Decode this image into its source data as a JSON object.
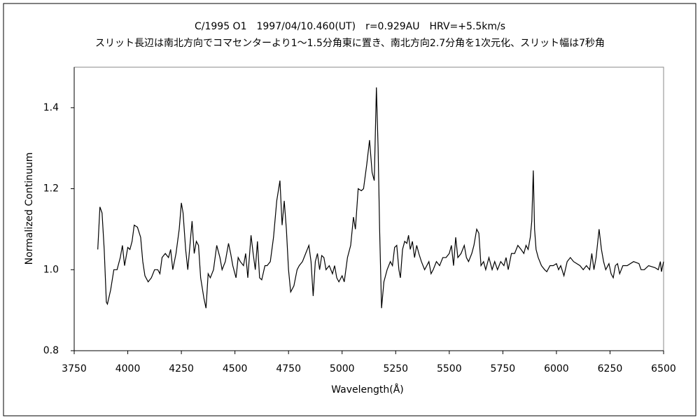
{
  "chart_data": {
    "type": "line",
    "title": "C/1995 O1　1997/04/10.460(UT)　r=0.929AU　HRV=+5.5km/s",
    "subtitle": "スリット長辺は南北方向でコマセンターより1～1.5分角東に置き、南北方向2.7分角を1次元化、スリット幅は7秒角",
    "x_label": "Wavelength(Å)",
    "y_label": "Normalized Continuum",
    "color": "#000000",
    "grid": false,
    "xlim": [
      3750,
      6500
    ],
    "xticks": [
      3750,
      4000,
      4250,
      4500,
      4750,
      5000,
      5250,
      5500,
      5750,
      6000,
      6250,
      6500
    ],
    "ylim": [
      0.8,
      1.5
    ],
    "yticks": [
      0.8,
      {
        "value": 1.0,
        "label": "1.0"
      },
      1.2,
      1.4
    ],
    "x": [
      3860,
      3870,
      3880,
      3890,
      3900,
      3905,
      3920,
      3935,
      3950,
      3965,
      3975,
      3985,
      4000,
      4010,
      4020,
      4030,
      4045,
      4060,
      4070,
      4080,
      4095,
      4110,
      4125,
      4140,
      4150,
      4160,
      4175,
      4190,
      4200,
      4210,
      4225,
      4240,
      4250,
      4258,
      4270,
      4280,
      4290,
      4300,
      4310,
      4320,
      4330,
      4340,
      4355,
      4365,
      4375,
      4385,
      4400,
      4415,
      4430,
      4440,
      4455,
      4470,
      4480,
      4490,
      4505,
      4515,
      4525,
      4540,
      4550,
      4560,
      4575,
      4585,
      4595,
      4605,
      4615,
      4625,
      4640,
      4650,
      4665,
      4680,
      4695,
      4710,
      4720,
      4730,
      4740,
      4750,
      4760,
      4775,
      4790,
      4800,
      4815,
      4830,
      4845,
      4855,
      4865,
      4875,
      4885,
      4895,
      4905,
      4915,
      4925,
      4940,
      4955,
      4965,
      4975,
      4985,
      5000,
      5010,
      5025,
      5040,
      5053,
      5062,
      5075,
      5090,
      5100,
      5115,
      5128,
      5140,
      5150,
      5160,
      5168,
      5175,
      5184,
      5195,
      5210,
      5225,
      5235,
      5245,
      5255,
      5265,
      5272,
      5282,
      5292,
      5302,
      5310,
      5318,
      5328,
      5338,
      5348,
      5358,
      5370,
      5385,
      5395,
      5405,
      5415,
      5425,
      5440,
      5455,
      5470,
      5485,
      5500,
      5510,
      5520,
      5530,
      5540,
      5555,
      5570,
      5580,
      5590,
      5605,
      5615,
      5628,
      5638,
      5648,
      5660,
      5670,
      5685,
      5700,
      5712,
      5725,
      5740,
      5755,
      5765,
      5775,
      5790,
      5805,
      5820,
      5835,
      5848,
      5858,
      5868,
      5878,
      5885,
      5892,
      5898,
      5905,
      5915,
      5930,
      5945,
      5955,
      5970,
      5985,
      6000,
      6010,
      6020,
      6035,
      6050,
      6065,
      6080,
      6095,
      6110,
      6125,
      6140,
      6155,
      6165,
      6175,
      6185,
      6199,
      6210,
      6220,
      6230,
      6245,
      6255,
      6265,
      6275,
      6285,
      6295,
      6310,
      6330,
      6360,
      6385,
      6395,
      6410,
      6430,
      6460,
      6475,
      6485,
      6490,
      6500
    ],
    "y": [
      1.05,
      1.155,
      1.14,
      1.05,
      0.92,
      0.915,
      0.95,
      1.0,
      1.0,
      1.03,
      1.06,
      1.01,
      1.055,
      1.05,
      1.07,
      1.11,
      1.105,
      1.08,
      1.02,
      0.985,
      0.97,
      0.98,
      1.0,
      1.0,
      0.99,
      1.03,
      1.04,
      1.03,
      1.05,
      1.0,
      1.04,
      1.1,
      1.165,
      1.14,
      1.05,
      1.0,
      1.06,
      1.12,
      1.04,
      1.07,
      1.06,
      0.98,
      0.93,
      0.905,
      0.99,
      0.98,
      1.0,
      1.06,
      1.03,
      1.0,
      1.02,
      1.065,
      1.04,
      1.01,
      0.98,
      1.03,
      1.02,
      1.01,
      1.04,
      0.98,
      1.085,
      1.04,
      1.0,
      1.07,
      0.98,
      0.975,
      1.01,
      1.01,
      1.02,
      1.08,
      1.17,
      1.22,
      1.11,
      1.17,
      1.1,
      1.0,
      0.945,
      0.96,
      1.0,
      1.01,
      1.02,
      1.04,
      1.06,
      1.02,
      0.935,
      1.02,
      1.04,
      1.0,
      1.035,
      1.03,
      1.0,
      1.01,
      0.99,
      1.01,
      0.98,
      0.97,
      0.985,
      0.97,
      1.03,
      1.06,
      1.13,
      1.1,
      1.2,
      1.195,
      1.2,
      1.26,
      1.32,
      1.24,
      1.22,
      1.45,
      1.3,
      1.1,
      0.905,
      0.97,
      1.0,
      1.02,
      1.01,
      1.055,
      1.06,
      1.0,
      0.98,
      1.05,
      1.07,
      1.065,
      1.085,
      1.05,
      1.07,
      1.03,
      1.06,
      1.04,
      1.02,
      1.0,
      1.01,
      1.02,
      0.99,
      1.0,
      1.02,
      1.01,
      1.03,
      1.03,
      1.04,
      1.06,
      1.01,
      1.08,
      1.03,
      1.04,
      1.06,
      1.03,
      1.02,
      1.04,
      1.06,
      1.1,
      1.09,
      1.01,
      1.02,
      1.0,
      1.03,
      1.0,
      1.02,
      1.0,
      1.02,
      1.01,
      1.03,
      1.0,
      1.04,
      1.04,
      1.06,
      1.05,
      1.04,
      1.06,
      1.05,
      1.08,
      1.12,
      1.245,
      1.1,
      1.05,
      1.03,
      1.01,
      1.0,
      0.995,
      1.01,
      1.01,
      1.015,
      1.0,
      1.01,
      0.985,
      1.02,
      1.03,
      1.02,
      1.015,
      1.01,
      1.0,
      1.01,
      1.0,
      1.04,
      1.0,
      1.03,
      1.1,
      1.05,
      1.02,
      1.0,
      1.015,
      0.99,
      0.98,
      1.01,
      1.015,
      0.99,
      1.01,
      1.01,
      1.02,
      1.015,
      1.0,
      1.0,
      1.01,
      1.005,
      1.0,
      1.02,
      0.995,
      1.02
    ]
  }
}
